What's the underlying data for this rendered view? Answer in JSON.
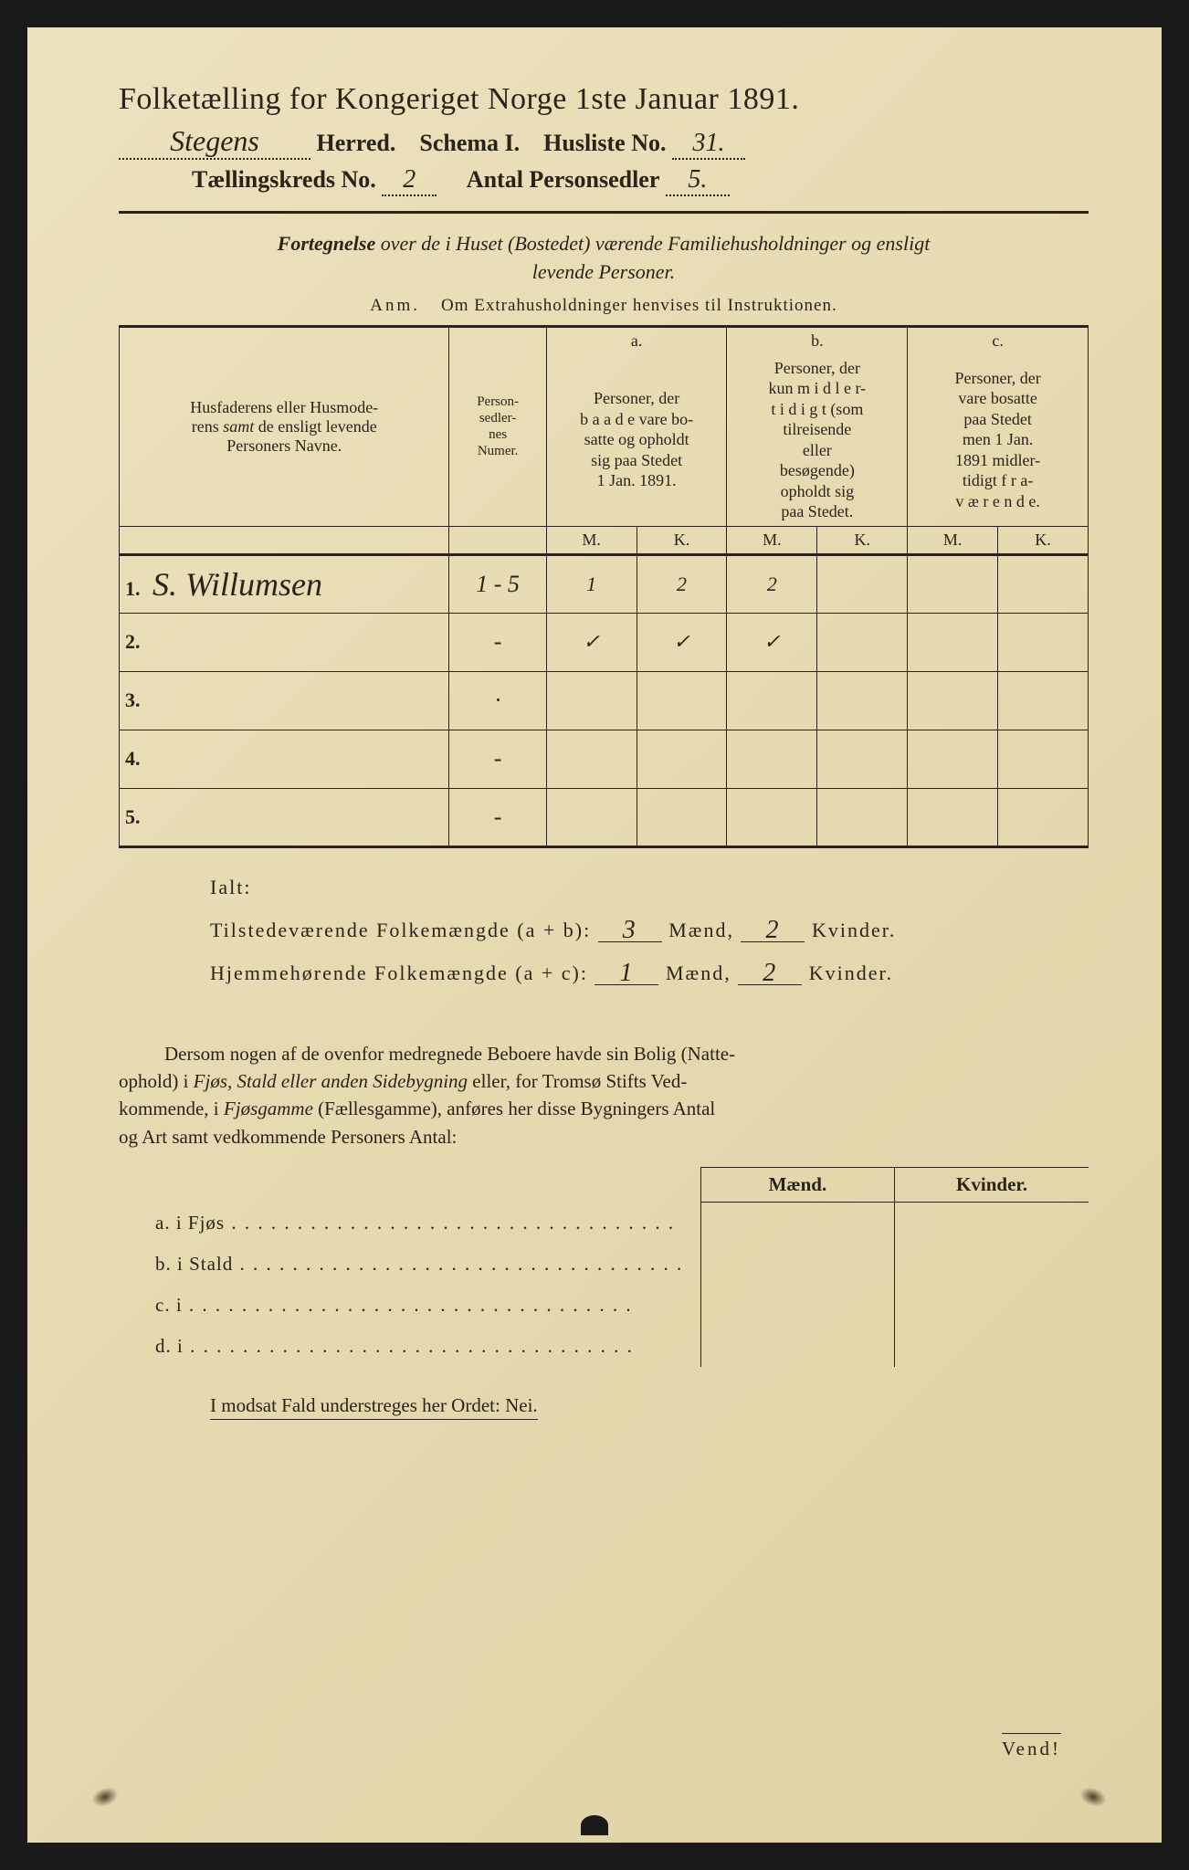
{
  "colors": {
    "paper": "#e8dcb8",
    "ink": "#2a2418",
    "background": "#1a1a1a"
  },
  "header": {
    "title": "Folketælling for Kongeriget Norge 1ste Januar 1891.",
    "herred_value": "Stegens",
    "herred_label": "Herred.",
    "schema_label": "Schema I.",
    "husliste_label": "Husliste No.",
    "husliste_value": "31.",
    "kreds_label": "Tællingskreds No.",
    "kreds_value": "2",
    "antal_label": "Antal Personsedler",
    "antal_value": "5."
  },
  "instructions": {
    "line": "Fortegnelse over de i Huset (Bostedet) værende Familiehusholdninger og ensligt levende Personer.",
    "anm_label": "Anm.",
    "anm_text": "Om Extrahusholdninger henvises til Instruktionen."
  },
  "table": {
    "head_name": "Husfaderens eller Husmoderens samt de ensligt levende Personers Navne.",
    "head_num": "Person-\nsedler-\nnes\nNumer.",
    "col_a_label": "a.",
    "col_a_text": "Personer, der baade vare bosatte og opholdt sig paa Stedet 1 Jan. 1891.",
    "col_b_label": "b.",
    "col_b_text": "Personer, der kun midler-tidigt (som tilreisende eller besøgende) opholdt sig paa Stedet.",
    "col_c_label": "c.",
    "col_c_text": "Personer, der vare bosatte paa Stedet men 1 Jan. 1891 midler-tidigt fra-værende.",
    "m": "M.",
    "k": "K.",
    "rows": [
      {
        "n": "1.",
        "name": "S. Willumsen",
        "num": "1 - 5",
        "am": "1",
        "ak": "2",
        "bm": "2",
        "bk": "",
        "cm": "",
        "ck": ""
      },
      {
        "n": "2.",
        "name": "",
        "num": "-",
        "am": "✓",
        "ak": "✓",
        "bm": "✓",
        "bk": "",
        "cm": "",
        "ck": ""
      },
      {
        "n": "3.",
        "name": "",
        "num": "·",
        "am": "",
        "ak": "",
        "bm": "",
        "bk": "",
        "cm": "",
        "ck": ""
      },
      {
        "n": "4.",
        "name": "",
        "num": "-",
        "am": "",
        "ak": "",
        "bm": "",
        "bk": "",
        "cm": "",
        "ck": ""
      },
      {
        "n": "5.",
        "name": "",
        "num": "-",
        "am": "",
        "ak": "",
        "bm": "",
        "bk": "",
        "cm": "",
        "ck": ""
      }
    ]
  },
  "ialt": {
    "title": "Ialt:",
    "line1_label": "Tilstedeværende Folkemængde (a + b):",
    "line1_m": "3",
    "line1_k": "2",
    "line2_label": "Hjemmehørende Folkemængde (a + c):",
    "line2_m": "1",
    "line2_k": "2",
    "maend": "Mænd,",
    "kvinder": "Kvinder."
  },
  "paragraph": "Dersom nogen af de ovenfor medregnede Beboere havde sin Bolig (Natte-ophold) i Fjøs, Stald eller anden Sidebygning eller, for Tromsø Stifts Vedkommende, i Fjøsgamme (Fællesgamme), anføres her disse Bygningers Antal og Art samt vedkommende Personers Antal:",
  "mk": {
    "maend": "Mænd.",
    "kvinder": "Kvinder.",
    "rows": [
      {
        "label": "a.  i      Fjøs"
      },
      {
        "label": "b.  i      Stald"
      },
      {
        "label": "c.  i"
      },
      {
        "label": "d.  i"
      }
    ]
  },
  "modsat": "I modsat Fald understreges her Ordet: Nei.",
  "vend": "Vend!"
}
